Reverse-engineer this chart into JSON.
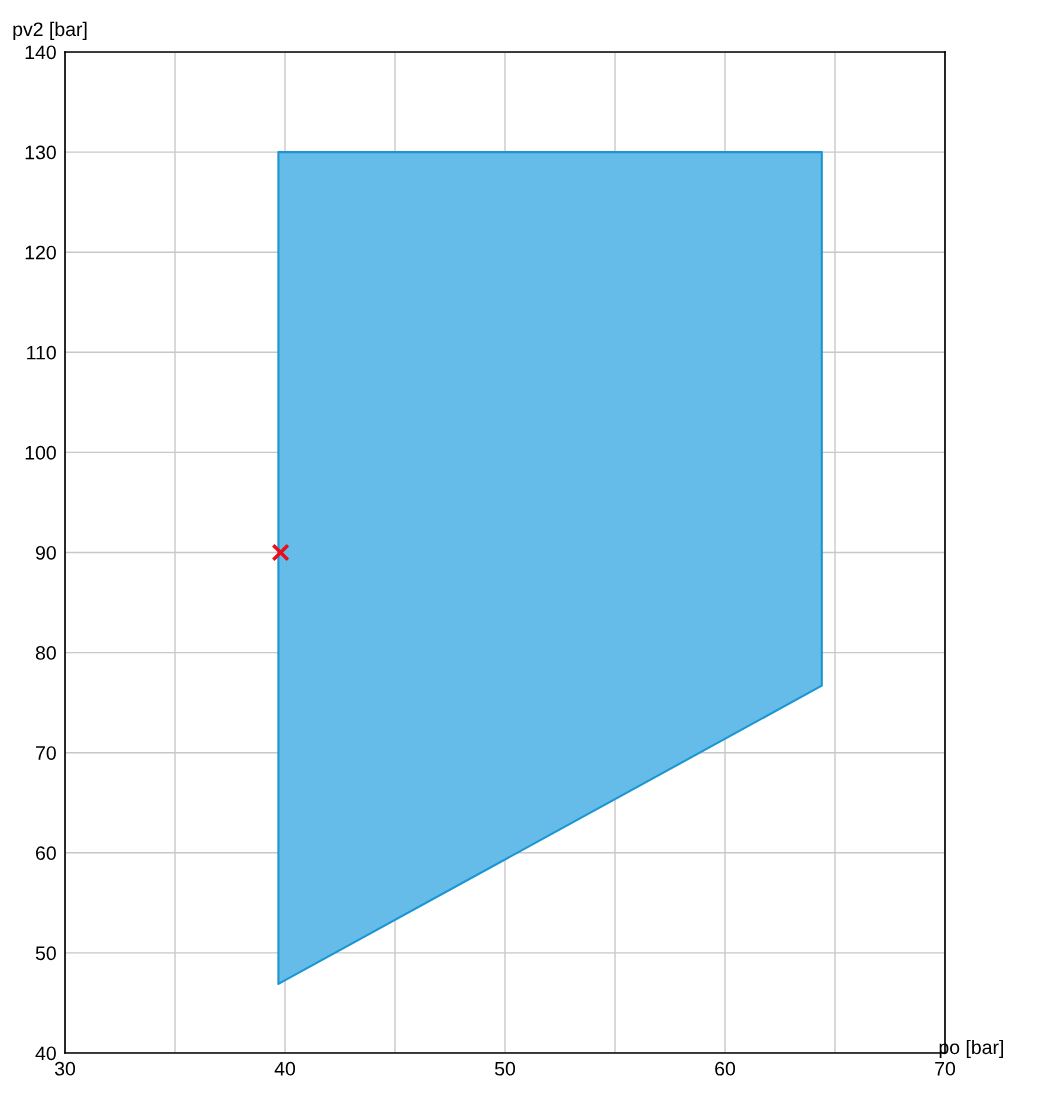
{
  "chart_data": {
    "type": "area",
    "xlabel": "po [bar]",
    "ylabel": "pv2 [bar]",
    "series": [
      {
        "color": "#66bce9",
        "x": [
          39.7,
          39.7,
          64.4,
          64.4
        ],
        "values": [
          46.9,
          130,
          130,
          76.7
        ]
      },
      {
        "type": "scatter",
        "color": "#e8101a",
        "marker": "cross",
        "x": [
          39.8
        ],
        "values": [
          90
        ]
      }
    ],
    "xlim": [
      30,
      70
    ],
    "xticks": [
      30,
      {
        "value": 35,
        "label": null
      },
      40,
      {
        "value": 45,
        "label": null
      },
      50,
      {
        "value": 55,
        "label": null
      },
      60,
      {
        "value": 65,
        "label": null
      },
      70
    ],
    "ylim": [
      40,
      140
    ],
    "yticks": [
      40,
      50,
      60,
      70,
      80,
      90,
      100,
      110,
      120,
      130,
      140
    ],
    "grid": true,
    "legend": false
  }
}
